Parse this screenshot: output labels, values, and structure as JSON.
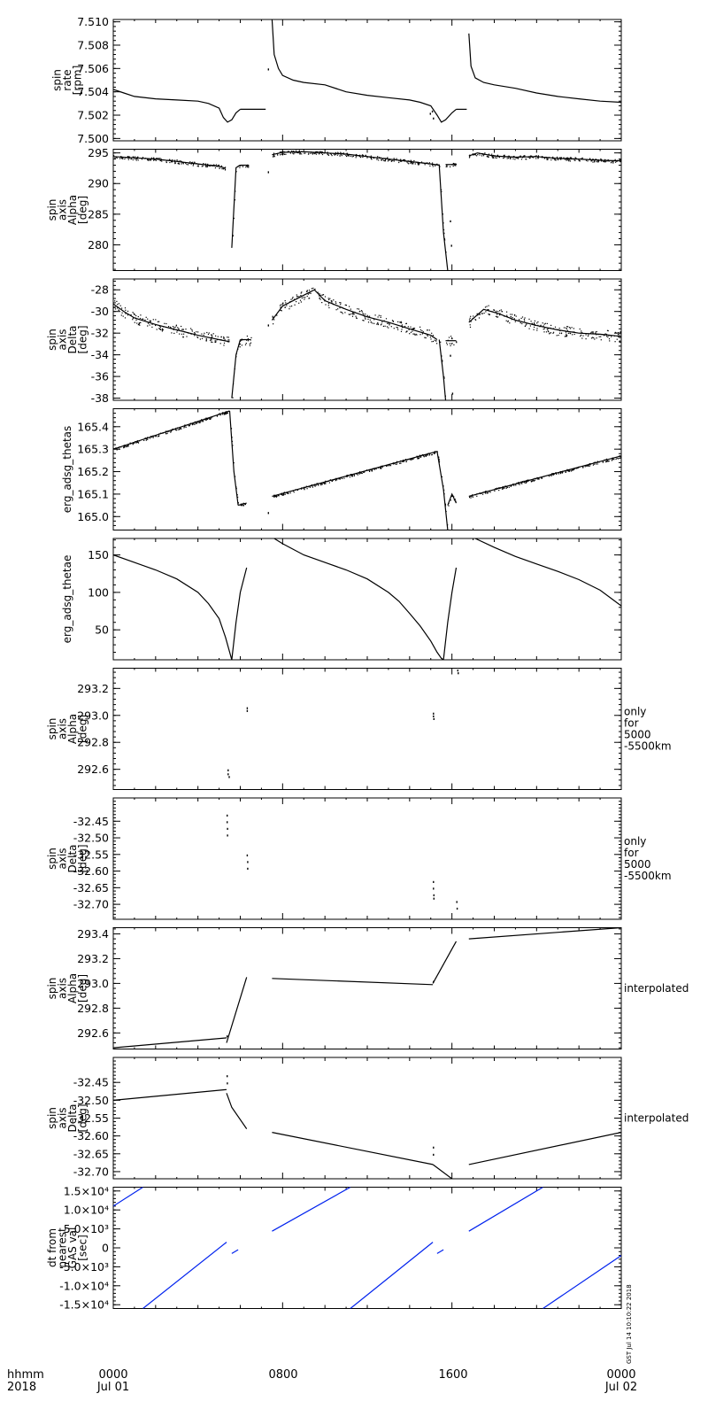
{
  "footer": {
    "left_top": "hhmm",
    "left_bottom": "2018",
    "ticks": [
      {
        "top": "0000",
        "bottom": "Jul 01"
      },
      {
        "top": "0800",
        "bottom": ""
      },
      {
        "top": "1600",
        "bottom": ""
      },
      {
        "top": "0000",
        "bottom": "Jul 02"
      }
    ],
    "watermark": "GST Jul 14 10:10:22 2018"
  },
  "chart_data": [
    {
      "type": "scatter",
      "ylabel": [
        "spin",
        "rate",
        "[rpm]"
      ],
      "ylim": [
        7.4998,
        7.5102
      ],
      "yticks": [
        "7.500",
        "7.502",
        "7.504",
        "7.506",
        "7.508",
        "7.510"
      ],
      "ytick_values": [
        7.5,
        7.502,
        7.504,
        7.506,
        7.508,
        7.51
      ],
      "xlim": [
        0,
        24
      ],
      "color": "#000000",
      "segments": [
        {
          "x": [
            0,
            0.5,
            1,
            2,
            3,
            4,
            4.5,
            5,
            5.2,
            5.4,
            5.6,
            5.8,
            6.0
          ],
          "y": [
            7.5042,
            7.5039,
            7.5036,
            7.5034,
            7.5033,
            7.5032,
            7.503,
            7.5026,
            7.5018,
            7.5014,
            7.5016,
            7.5022,
            7.5025
          ]
        },
        {
          "x": [
            6.0,
            7.2
          ],
          "y": [
            7.5025,
            7.5025
          ]
        },
        {
          "x": [
            7.5,
            7.6,
            7.8,
            8,
            8.5,
            9,
            10,
            11,
            12,
            13,
            14,
            14.5,
            15,
            15.3,
            15.5,
            15.7,
            16,
            16.2
          ],
          "y": [
            7.5102,
            7.5072,
            7.506,
            7.5054,
            7.505,
            7.5048,
            7.5046,
            7.504,
            7.5037,
            7.5035,
            7.5033,
            7.5031,
            7.5028,
            7.502,
            7.5014,
            7.5016,
            7.5022,
            7.5025
          ]
        },
        {
          "x": [
            16.2,
            16.7
          ],
          "y": [
            7.5025,
            7.5025
          ]
        },
        {
          "x": [
            16.8,
            16.9,
            17.1,
            17.5,
            18,
            19,
            20,
            21,
            22,
            23,
            24
          ],
          "y": [
            7.509,
            7.5062,
            7.5052,
            7.5048,
            7.5046,
            7.5043,
            7.5039,
            7.5036,
            7.5034,
            7.5032,
            7.5031
          ]
        }
      ],
      "dots": [
        [
          7.3,
          7.506
        ],
        [
          15.05,
          7.5024
        ],
        [
          15.1,
          7.5018
        ],
        [
          14.95,
          7.5022
        ]
      ],
      "right_note": []
    },
    {
      "type": "scatter",
      "ylabel": [
        "spin",
        "axis",
        "Alpha",
        "[deg]"
      ],
      "ylim": [
        275.8,
        295.6
      ],
      "yticks": [
        "280",
        "285",
        "290",
        "295"
      ],
      "ytick_values": [
        280,
        285,
        290,
        295
      ],
      "xlim": [
        0,
        24
      ],
      "color": "#000000",
      "noise": 0.6,
      "segments": [
        {
          "x": [
            0,
            1,
            2,
            3,
            4,
            5,
            5.3
          ],
          "y": [
            294.4,
            294.2,
            294.0,
            293.6,
            293.2,
            292.8,
            292.5
          ]
        },
        {
          "x": [
            5.6,
            5.8,
            6.0
          ],
          "y": [
            279.5,
            292.6,
            293.0
          ]
        },
        {
          "x": [
            6.0,
            6.4
          ],
          "y": [
            293.0,
            293.0
          ]
        },
        {
          "x": [
            7.5,
            8,
            9,
            10,
            11,
            12,
            13,
            14,
            15,
            15.4
          ],
          "y": [
            294.7,
            295.1,
            295.2,
            295.0,
            294.8,
            294.4,
            294.0,
            293.6,
            293.2,
            293.0
          ]
        },
        {
          "x": [
            15.4,
            15.6,
            15.8
          ],
          "y": [
            293.0,
            282.0,
            275.8
          ]
        },
        {
          "x": [
            15.7,
            16.2
          ],
          "y": [
            293.1,
            293.1
          ]
        },
        {
          "x": [
            16.8,
            17.2,
            18,
            19,
            20,
            21,
            22,
            23,
            24
          ],
          "y": [
            294.5,
            295.0,
            294.5,
            294.3,
            294.4,
            294.1,
            294.0,
            293.8,
            293.7
          ]
        }
      ],
      "dots": [
        [
          7.3,
          292.0
        ],
        [
          15.9,
          284.0
        ],
        [
          15.95,
          280.0
        ]
      ],
      "right_note": []
    },
    {
      "type": "scatter",
      "ylabel": [
        "spin",
        "axis",
        "Delta",
        "[deg]"
      ],
      "ylim": [
        -38.2,
        -27.0
      ],
      "yticks": [
        "-38",
        "-36",
        "-34",
        "-32",
        "-30",
        "-28"
      ],
      "ytick_values": [
        -38,
        -36,
        -34,
        -32,
        -30,
        -28
      ],
      "xlim": [
        0,
        24
      ],
      "color": "#000000",
      "noise": 1.0,
      "segments": [
        {
          "x": [
            0,
            0.5,
            1,
            2,
            3,
            4,
            5,
            5.5
          ],
          "y": [
            -29.3,
            -30.0,
            -30.6,
            -31.2,
            -31.7,
            -32.2,
            -32.6,
            -32.8
          ]
        },
        {
          "x": [
            5.6,
            5.8,
            6.0
          ],
          "y": [
            -38.0,
            -34.0,
            -32.6
          ]
        },
        {
          "x": [
            6.0,
            6.5
          ],
          "y": [
            -32.6,
            -32.6
          ]
        },
        {
          "x": [
            7.5,
            8,
            9,
            9.5,
            10,
            11,
            12,
            13,
            14,
            15,
            15.3
          ],
          "y": [
            -30.8,
            -29.5,
            -28.5,
            -28.0,
            -29.0,
            -29.8,
            -30.5,
            -31.0,
            -31.6,
            -32.2,
            -32.6
          ]
        },
        {
          "x": [
            15.4,
            15.6,
            15.7
          ],
          "y": [
            -32.6,
            -36.0,
            -38.2
          ]
        },
        {
          "x": [
            15.7,
            16.2
          ],
          "y": [
            -32.7,
            -32.7
          ]
        },
        {
          "x": [
            16.8,
            17.5,
            18.2,
            19,
            20,
            21,
            22,
            23,
            24
          ],
          "y": [
            -31.0,
            -29.8,
            -30.2,
            -30.8,
            -31.3,
            -31.7,
            -32.0,
            -32.1,
            -32.3
          ]
        }
      ],
      "dots": [
        [
          7.3,
          -31.2
        ],
        [
          15.9,
          -34.0
        ],
        [
          16.0,
          -37.5
        ]
      ],
      "right_note": []
    },
    {
      "type": "scatter",
      "ylabel": [
        "erg_adsg_thetas"
      ],
      "ylim": [
        164.94,
        165.48
      ],
      "yticks": [
        "165.0",
        "165.1",
        "165.2",
        "165.3",
        "165.4"
      ],
      "ytick_values": [
        165.0,
        165.1,
        165.2,
        165.3,
        165.4
      ],
      "xlim": [
        0,
        24
      ],
      "color": "#000000",
      "noise": 0.012,
      "segments": [
        {
          "x": [
            0,
            5.5
          ],
          "y": [
            165.3,
            165.47
          ]
        },
        {
          "x": [
            5.5,
            5.7,
            5.9
          ],
          "y": [
            165.47,
            165.2,
            165.05
          ]
        },
        {
          "x": [
            5.9,
            6.3
          ],
          "y": [
            165.05,
            165.06
          ]
        },
        {
          "x": [
            7.5,
            15.3
          ],
          "y": [
            165.09,
            165.29
          ]
        },
        {
          "x": [
            15.3,
            15.6,
            15.8
          ],
          "y": [
            165.29,
            165.12,
            164.94
          ]
        },
        {
          "x": [
            15.8,
            16.0,
            16.2
          ],
          "y": [
            165.05,
            165.1,
            165.06
          ]
        },
        {
          "x": [
            16.8,
            24
          ],
          "y": [
            165.09,
            165.27
          ]
        }
      ],
      "dots": [
        [
          7.3,
          165.02
        ]
      ],
      "right_note": []
    },
    {
      "type": "line",
      "ylabel": [
        "erg_adsg_thetae"
      ],
      "ylim": [
        10,
        172
      ],
      "yticks": [
        "50",
        "100",
        "150"
      ],
      "ytick_values": [
        50,
        100,
        150
      ],
      "xlim": [
        0,
        24
      ],
      "color": "#000000",
      "segments": [
        {
          "x": [
            0,
            1,
            2,
            3,
            4,
            4.5,
            5,
            5.3,
            5.6
          ],
          "y": [
            150,
            140,
            130,
            118,
            100,
            85,
            65,
            40,
            10
          ]
        },
        {
          "x": [
            5.6,
            5.8,
            6.0,
            6.3
          ],
          "y": [
            10,
            60,
            100,
            133
          ]
        },
        {
          "x": [
            7.6,
            8,
            9,
            10,
            11,
            12,
            13,
            13.5,
            14,
            14.5,
            15,
            15.3,
            15.5,
            15.6
          ],
          "y": [
            172,
            165,
            150,
            140,
            130,
            118,
            100,
            88,
            72,
            55,
            35,
            20,
            12,
            10
          ]
        },
        {
          "x": [
            15.6,
            15.8,
            16.0,
            16.2
          ],
          "y": [
            10,
            60,
            100,
            133
          ]
        },
        {
          "x": [
            17.1,
            18,
            19,
            20,
            21,
            22,
            23,
            24
          ],
          "y": [
            172,
            160,
            148,
            138,
            128,
            117,
            103,
            82
          ]
        }
      ],
      "dots": [],
      "right_note": []
    },
    {
      "type": "scatter",
      "ylabel": [
        "spin",
        "axis",
        "Alpha",
        "[deg]"
      ],
      "ylim": [
        292.45,
        293.35
      ],
      "yticks": [
        "292.6",
        "292.8",
        "293.0",
        "293.2"
      ],
      "ytick_values": [
        292.6,
        292.8,
        293.0,
        293.2
      ],
      "xlim": [
        0,
        24
      ],
      "color": "#000000",
      "segments": [],
      "dots": [
        [
          5.4,
          292.57
        ],
        [
          5.4,
          292.6
        ],
        [
          5.45,
          292.55
        ],
        [
          6.3,
          293.06
        ],
        [
          6.3,
          293.04
        ],
        [
          15.1,
          293.0
        ],
        [
          15.12,
          292.98
        ],
        [
          15.1,
          293.02
        ],
        [
          16.25,
          293.34
        ],
        [
          16.27,
          293.32
        ]
      ],
      "right_note": [
        "only",
        "for",
        "5000",
        "-5500km"
      ]
    },
    {
      "type": "scatter",
      "ylabel": [
        "spin",
        "axis",
        "Delta",
        "[deg]"
      ],
      "ylim": [
        -32.745,
        -32.38
      ],
      "yticks": [
        "-32.70",
        "-32.65",
        "-32.60",
        "-32.55",
        "-32.50",
        "-32.45"
      ],
      "ytick_values": [
        -32.7,
        -32.65,
        -32.6,
        -32.55,
        -32.5,
        -32.45
      ],
      "xlim": [
        0,
        24
      ],
      "color": "#000000",
      "segments": [],
      "dots": [
        [
          5.35,
          -32.43
        ],
        [
          5.35,
          -32.45
        ],
        [
          5.37,
          -32.47
        ],
        [
          5.37,
          -32.49
        ],
        [
          6.3,
          -32.55
        ],
        [
          6.32,
          -32.57
        ],
        [
          6.32,
          -32.59
        ],
        [
          15.1,
          -32.63
        ],
        [
          15.1,
          -32.65
        ],
        [
          15.12,
          -32.67
        ],
        [
          15.12,
          -32.68
        ],
        [
          16.2,
          -32.69
        ],
        [
          16.22,
          -32.71
        ]
      ],
      "right_note": [
        "only",
        "for",
        "5000",
        "-5500km"
      ]
    },
    {
      "type": "line",
      "ylabel": [
        "spin",
        "axis",
        "Alpha",
        "[deg]"
      ],
      "ylim": [
        292.47,
        293.45
      ],
      "yticks": [
        "292.6",
        "292.8",
        "293.0",
        "293.2",
        "293.4"
      ],
      "ytick_values": [
        292.6,
        292.8,
        293.0,
        293.2,
        293.4
      ],
      "xlim": [
        0,
        24
      ],
      "color": "#000000",
      "segments": [
        {
          "x": [
            0,
            5.35
          ],
          "y": [
            292.48,
            292.56
          ]
        },
        {
          "x": [
            5.35,
            6.3
          ],
          "y": [
            292.52,
            293.05
          ]
        },
        {
          "x": [
            7.5,
            15.1
          ],
          "y": [
            293.04,
            292.99
          ]
        },
        {
          "x": [
            15.1,
            16.2
          ],
          "y": [
            293.0,
            293.34
          ]
        },
        {
          "x": [
            16.8,
            24
          ],
          "y": [
            293.36,
            293.45
          ]
        }
      ],
      "dots": [
        [
          5.35,
          292.58
        ],
        [
          15.1,
          293.02
        ]
      ],
      "right_note": [
        "interpolated"
      ]
    },
    {
      "type": "line",
      "ylabel": [
        "spin",
        "axis",
        "Delta",
        "[deg]"
      ],
      "ylim": [
        -32.72,
        -32.38
      ],
      "yticks": [
        "-32.70",
        "-32.65",
        "-32.60",
        "-32.55",
        "-32.50",
        "-32.45"
      ],
      "ytick_values": [
        -32.7,
        -32.65,
        -32.6,
        -32.55,
        -32.5,
        -32.45
      ],
      "xlim": [
        0,
        24
      ],
      "color": "#000000",
      "segments": [
        {
          "x": [
            0,
            5.35
          ],
          "y": [
            -32.5,
            -32.47
          ]
        },
        {
          "x": [
            5.35,
            5.6,
            6.3
          ],
          "y": [
            -32.48,
            -32.52,
            -32.58
          ]
        },
        {
          "x": [
            7.5,
            15.1
          ],
          "y": [
            -32.59,
            -32.68
          ]
        },
        {
          "x": [
            15.1,
            16.0
          ],
          "y": [
            -32.68,
            -32.72
          ]
        },
        {
          "x": [
            16.8,
            24
          ],
          "y": [
            -32.68,
            -32.59
          ]
        }
      ],
      "dots": [
        [
          5.35,
          -32.43
        ],
        [
          5.36,
          -32.45
        ],
        [
          15.1,
          -32.63
        ],
        [
          15.1,
          -32.65
        ]
      ],
      "right_note": [
        "interpolated"
      ]
    },
    {
      "type": "line",
      "ylabel": [
        "dt from",
        "nearest",
        "GAS val",
        "[sec]"
      ],
      "ylim": [
        -16000,
        16000
      ],
      "yticks": [
        "-1.5×10⁴",
        "-1.0×10⁴",
        "-5.0×10³",
        "0",
        "5.0×10³",
        "1.0×10⁴",
        "1.5×10⁴"
      ],
      "ytick_values": [
        -15000,
        -10000,
        -5000,
        0,
        5000,
        10000,
        15000
      ],
      "xlim": [
        0,
        24
      ],
      "color": "#0022ee",
      "segments": [
        {
          "x": [
            0,
            1.4
          ],
          "y": [
            11000,
            16000
          ]
        },
        {
          "x": [
            1.4,
            5.35
          ],
          "y": [
            -16000,
            1500
          ]
        },
        {
          "x": [
            5.6,
            5.9
          ],
          "y": [
            -1500,
            -500
          ]
        },
        {
          "x": [
            7.5,
            11.2
          ],
          "y": [
            4400,
            16000
          ]
        },
        {
          "x": [
            11.2,
            15.1
          ],
          "y": [
            -16000,
            1500
          ]
        },
        {
          "x": [
            15.3,
            15.6
          ],
          "y": [
            -1500,
            -500
          ]
        },
        {
          "x": [
            16.8,
            20.3
          ],
          "y": [
            4400,
            16000
          ]
        },
        {
          "x": [
            20.3,
            24
          ],
          "y": [
            -16000,
            -2000
          ]
        }
      ],
      "dots": [],
      "right_note": []
    }
  ]
}
